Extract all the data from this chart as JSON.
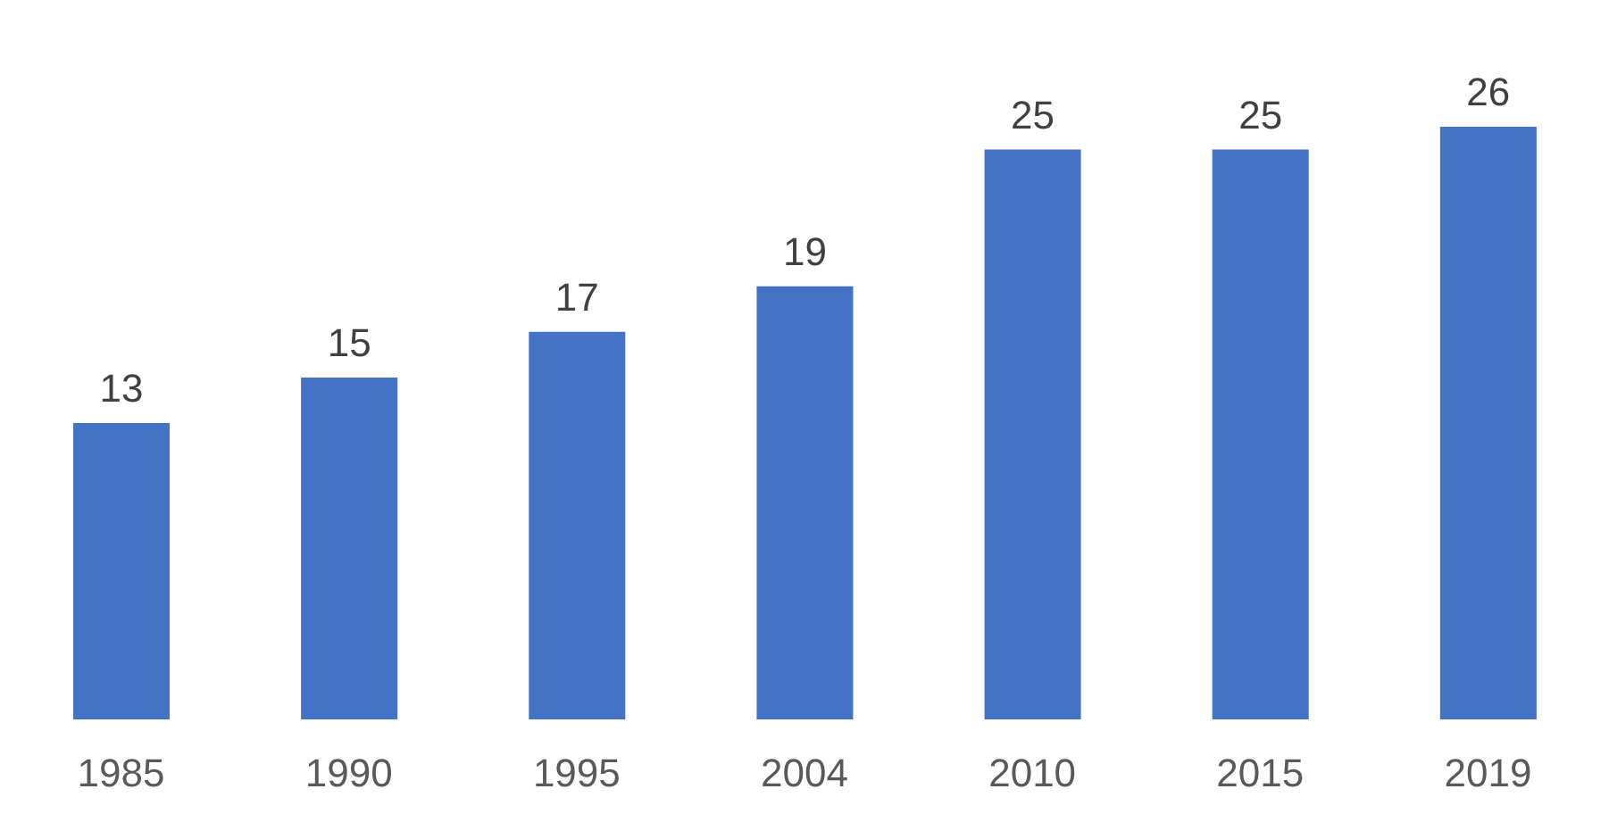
{
  "chart_data": {
    "type": "bar",
    "categories": [
      "1985",
      "1990",
      "1995",
      "2004",
      "2010",
      "2015",
      "2019"
    ],
    "values": [
      13,
      15,
      17,
      19,
      25,
      25,
      26
    ],
    "color": "#4472c4",
    "data_labels": true,
    "tick_labels": "x"
  }
}
